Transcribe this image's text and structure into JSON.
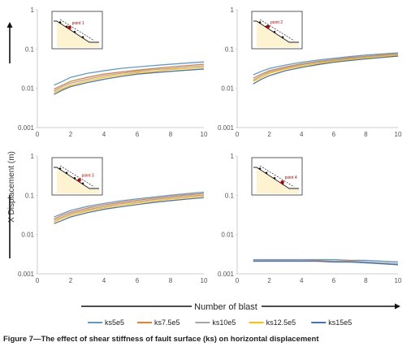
{
  "figure": {
    "caption": "Figure 7—The effect of shear stiffness of fault surface (ks) on horizontal displacement",
    "ylabel": "X Displacement (m)",
    "xlabel": "Number of blast"
  },
  "colors": {
    "ks5e5": "#5b9bd5",
    "ks7.5e5": "#ed7d31",
    "ks10e5": "#a5a5a5",
    "ks12.5e5": "#ffc000",
    "ks15e5": "#4472c4"
  },
  "chart_data": [
    {
      "type": "line",
      "panel": 1,
      "inset_label": "point 1",
      "yscale": "log",
      "ylim": [
        0.001,
        1
      ],
      "xlim": [
        0,
        10
      ],
      "yticks": [
        "1",
        "0.1",
        "0.01",
        "0.001"
      ],
      "xticks": [
        "0",
        "2",
        "4",
        "6",
        "8",
        "10"
      ],
      "x": [
        1,
        1.5,
        2,
        3,
        4,
        5,
        6,
        7,
        8,
        9,
        10
      ],
      "series": [
        {
          "name": "ks5e5",
          "values": [
            0.012,
            0.015,
            0.019,
            0.024,
            0.028,
            0.032,
            0.035,
            0.038,
            0.041,
            0.044,
            0.047
          ]
        },
        {
          "name": "ks7.5e5",
          "values": [
            0.0095,
            0.012,
            0.015,
            0.019,
            0.023,
            0.026,
            0.029,
            0.032,
            0.035,
            0.038,
            0.041
          ]
        },
        {
          "name": "ks10e5",
          "values": [
            0.0085,
            0.011,
            0.0135,
            0.017,
            0.021,
            0.024,
            0.027,
            0.03,
            0.032,
            0.035,
            0.037
          ]
        },
        {
          "name": "ks12.5e5",
          "values": [
            0.0078,
            0.0098,
            0.012,
            0.0155,
            0.019,
            0.022,
            0.025,
            0.027,
            0.03,
            0.032,
            0.034
          ]
        },
        {
          "name": "ks15e5",
          "values": [
            0.007,
            0.009,
            0.011,
            0.014,
            0.017,
            0.02,
            0.023,
            0.025,
            0.027,
            0.029,
            0.031
          ]
        }
      ]
    },
    {
      "type": "line",
      "panel": 2,
      "inset_label": "point 2",
      "yscale": "log",
      "ylim": [
        0.001,
        1
      ],
      "xlim": [
        0,
        10
      ],
      "yticks": [
        "1",
        "0.1",
        "0.01",
        "0.001"
      ],
      "xticks": [
        "0",
        "2",
        "4",
        "6",
        "8",
        "10"
      ],
      "x": [
        1,
        1.5,
        2,
        3,
        4,
        5,
        6,
        7,
        8,
        9,
        10
      ],
      "series": [
        {
          "name": "ks5e5",
          "values": [
            0.022,
            0.027,
            0.032,
            0.039,
            0.046,
            0.052,
            0.058,
            0.064,
            0.07,
            0.075,
            0.08
          ]
        },
        {
          "name": "ks7.5e5",
          "values": [
            0.018,
            0.023,
            0.028,
            0.035,
            0.042,
            0.048,
            0.054,
            0.06,
            0.065,
            0.071,
            0.076
          ]
        },
        {
          "name": "ks10e5",
          "values": [
            0.016,
            0.021,
            0.026,
            0.033,
            0.04,
            0.046,
            0.052,
            0.057,
            0.063,
            0.068,
            0.073
          ]
        },
        {
          "name": "ks12.5e5",
          "values": [
            0.015,
            0.019,
            0.024,
            0.031,
            0.037,
            0.043,
            0.049,
            0.054,
            0.06,
            0.065,
            0.07
          ]
        },
        {
          "name": "ks15e5",
          "values": [
            0.013,
            0.017,
            0.021,
            0.028,
            0.034,
            0.04,
            0.046,
            0.051,
            0.056,
            0.061,
            0.066
          ]
        }
      ]
    },
    {
      "type": "line",
      "panel": 3,
      "inset_label": "point 3",
      "yscale": "log",
      "ylim": [
        0.001,
        1
      ],
      "xlim": [
        0,
        10
      ],
      "yticks": [
        "1",
        "0.1",
        "0.01",
        "0.001"
      ],
      "xticks": [
        "0",
        "2",
        "4",
        "6",
        "8",
        "10"
      ],
      "x": [
        1,
        1.5,
        2,
        3,
        4,
        5,
        6,
        7,
        8,
        9,
        10
      ],
      "series": [
        {
          "name": "ks5e5",
          "values": [
            0.028,
            0.034,
            0.041,
            0.052,
            0.062,
            0.072,
            0.081,
            0.09,
            0.1,
            0.11,
            0.12
          ]
        },
        {
          "name": "ks7.5e5",
          "values": [
            0.025,
            0.031,
            0.037,
            0.047,
            0.057,
            0.066,
            0.075,
            0.084,
            0.093,
            0.102,
            0.111
          ]
        },
        {
          "name": "ks10e5",
          "values": [
            0.023,
            0.028,
            0.034,
            0.043,
            0.052,
            0.061,
            0.069,
            0.078,
            0.086,
            0.094,
            0.102
          ]
        },
        {
          "name": "ks12.5e5",
          "values": [
            0.021,
            0.026,
            0.031,
            0.04,
            0.048,
            0.056,
            0.064,
            0.072,
            0.08,
            0.087,
            0.095
          ]
        },
        {
          "name": "ks15e5",
          "values": [
            0.019,
            0.023,
            0.028,
            0.036,
            0.044,
            0.051,
            0.058,
            0.066,
            0.073,
            0.08,
            0.087
          ]
        }
      ]
    },
    {
      "type": "line",
      "panel": 4,
      "inset_label": "point 4",
      "yscale": "log",
      "ylim": [
        0.001,
        1
      ],
      "xlim": [
        0,
        10
      ],
      "yticks": [
        "1",
        "0.1",
        "0.01",
        "0.001"
      ],
      "xticks": [
        "0",
        "2",
        "4",
        "6",
        "8",
        "10"
      ],
      "x": [
        1,
        2,
        3,
        4,
        5,
        6,
        7,
        8,
        9,
        10
      ],
      "series": [
        {
          "name": "ks5e5",
          "values": [
            0.0023,
            0.0023,
            0.0023,
            0.0023,
            0.0023,
            0.0023,
            0.0022,
            0.0022,
            0.0021,
            0.002
          ]
        },
        {
          "name": "ks7.5e5",
          "values": [
            0.0022,
            0.0022,
            0.0022,
            0.0022,
            0.0022,
            0.0021,
            0.0021,
            0.002,
            0.0019,
            0.0018
          ]
        },
        {
          "name": "ks10e5",
          "values": [
            0.0022,
            0.0022,
            0.0022,
            0.0022,
            0.0021,
            0.0021,
            0.002,
            0.002,
            0.0019,
            0.0018
          ]
        },
        {
          "name": "ks12.5e5",
          "values": [
            0.0021,
            0.0021,
            0.0021,
            0.0021,
            0.0021,
            0.002,
            0.002,
            0.0019,
            0.0018,
            0.0017
          ]
        },
        {
          "name": "ks15e5",
          "values": [
            0.0021,
            0.0021,
            0.0021,
            0.0021,
            0.0021,
            0.002,
            0.002,
            0.0019,
            0.0018,
            0.0017
          ]
        }
      ]
    }
  ],
  "legend": {
    "placement": "bottom",
    "items": [
      "ks5e5",
      "ks7.5e5",
      "ks10e5",
      "ks12.5e5",
      "ks15e5"
    ]
  }
}
